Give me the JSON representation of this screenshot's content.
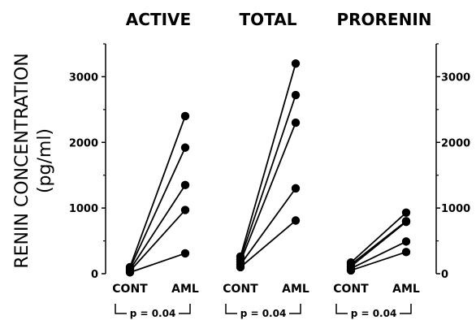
{
  "chart_data": {
    "type": "line",
    "ylabel_line1": "RENIN CONCENTRATION",
    "ylabel_line2": "(pg/ml)",
    "ylim": [
      0,
      3500
    ],
    "yticks": [
      0,
      1000,
      2000,
      3000
    ],
    "grid": false,
    "panels": [
      {
        "title": "ACTIVE",
        "categories": [
          "CONT",
          "AML"
        ],
        "annotation": "p = 0.04",
        "pairs": [
          [
            100,
            2400
          ],
          [
            80,
            1920
          ],
          [
            60,
            1350
          ],
          [
            40,
            970
          ],
          [
            20,
            310
          ]
        ]
      },
      {
        "title": "TOTAL",
        "categories": [
          "CONT",
          "AML"
        ],
        "annotation": "p = 0.04",
        "pairs": [
          [
            260,
            3200
          ],
          [
            220,
            2720
          ],
          [
            180,
            2300
          ],
          [
            140,
            1300
          ],
          [
            100,
            810
          ]
        ]
      },
      {
        "title": "PRORENIN",
        "categories": [
          "CONT",
          "AML"
        ],
        "annotation": "p = 0.04",
        "pairs": [
          [
            170,
            930
          ],
          [
            140,
            800
          ],
          [
            110,
            790
          ],
          [
            80,
            490
          ],
          [
            50,
            330
          ]
        ]
      }
    ]
  }
}
